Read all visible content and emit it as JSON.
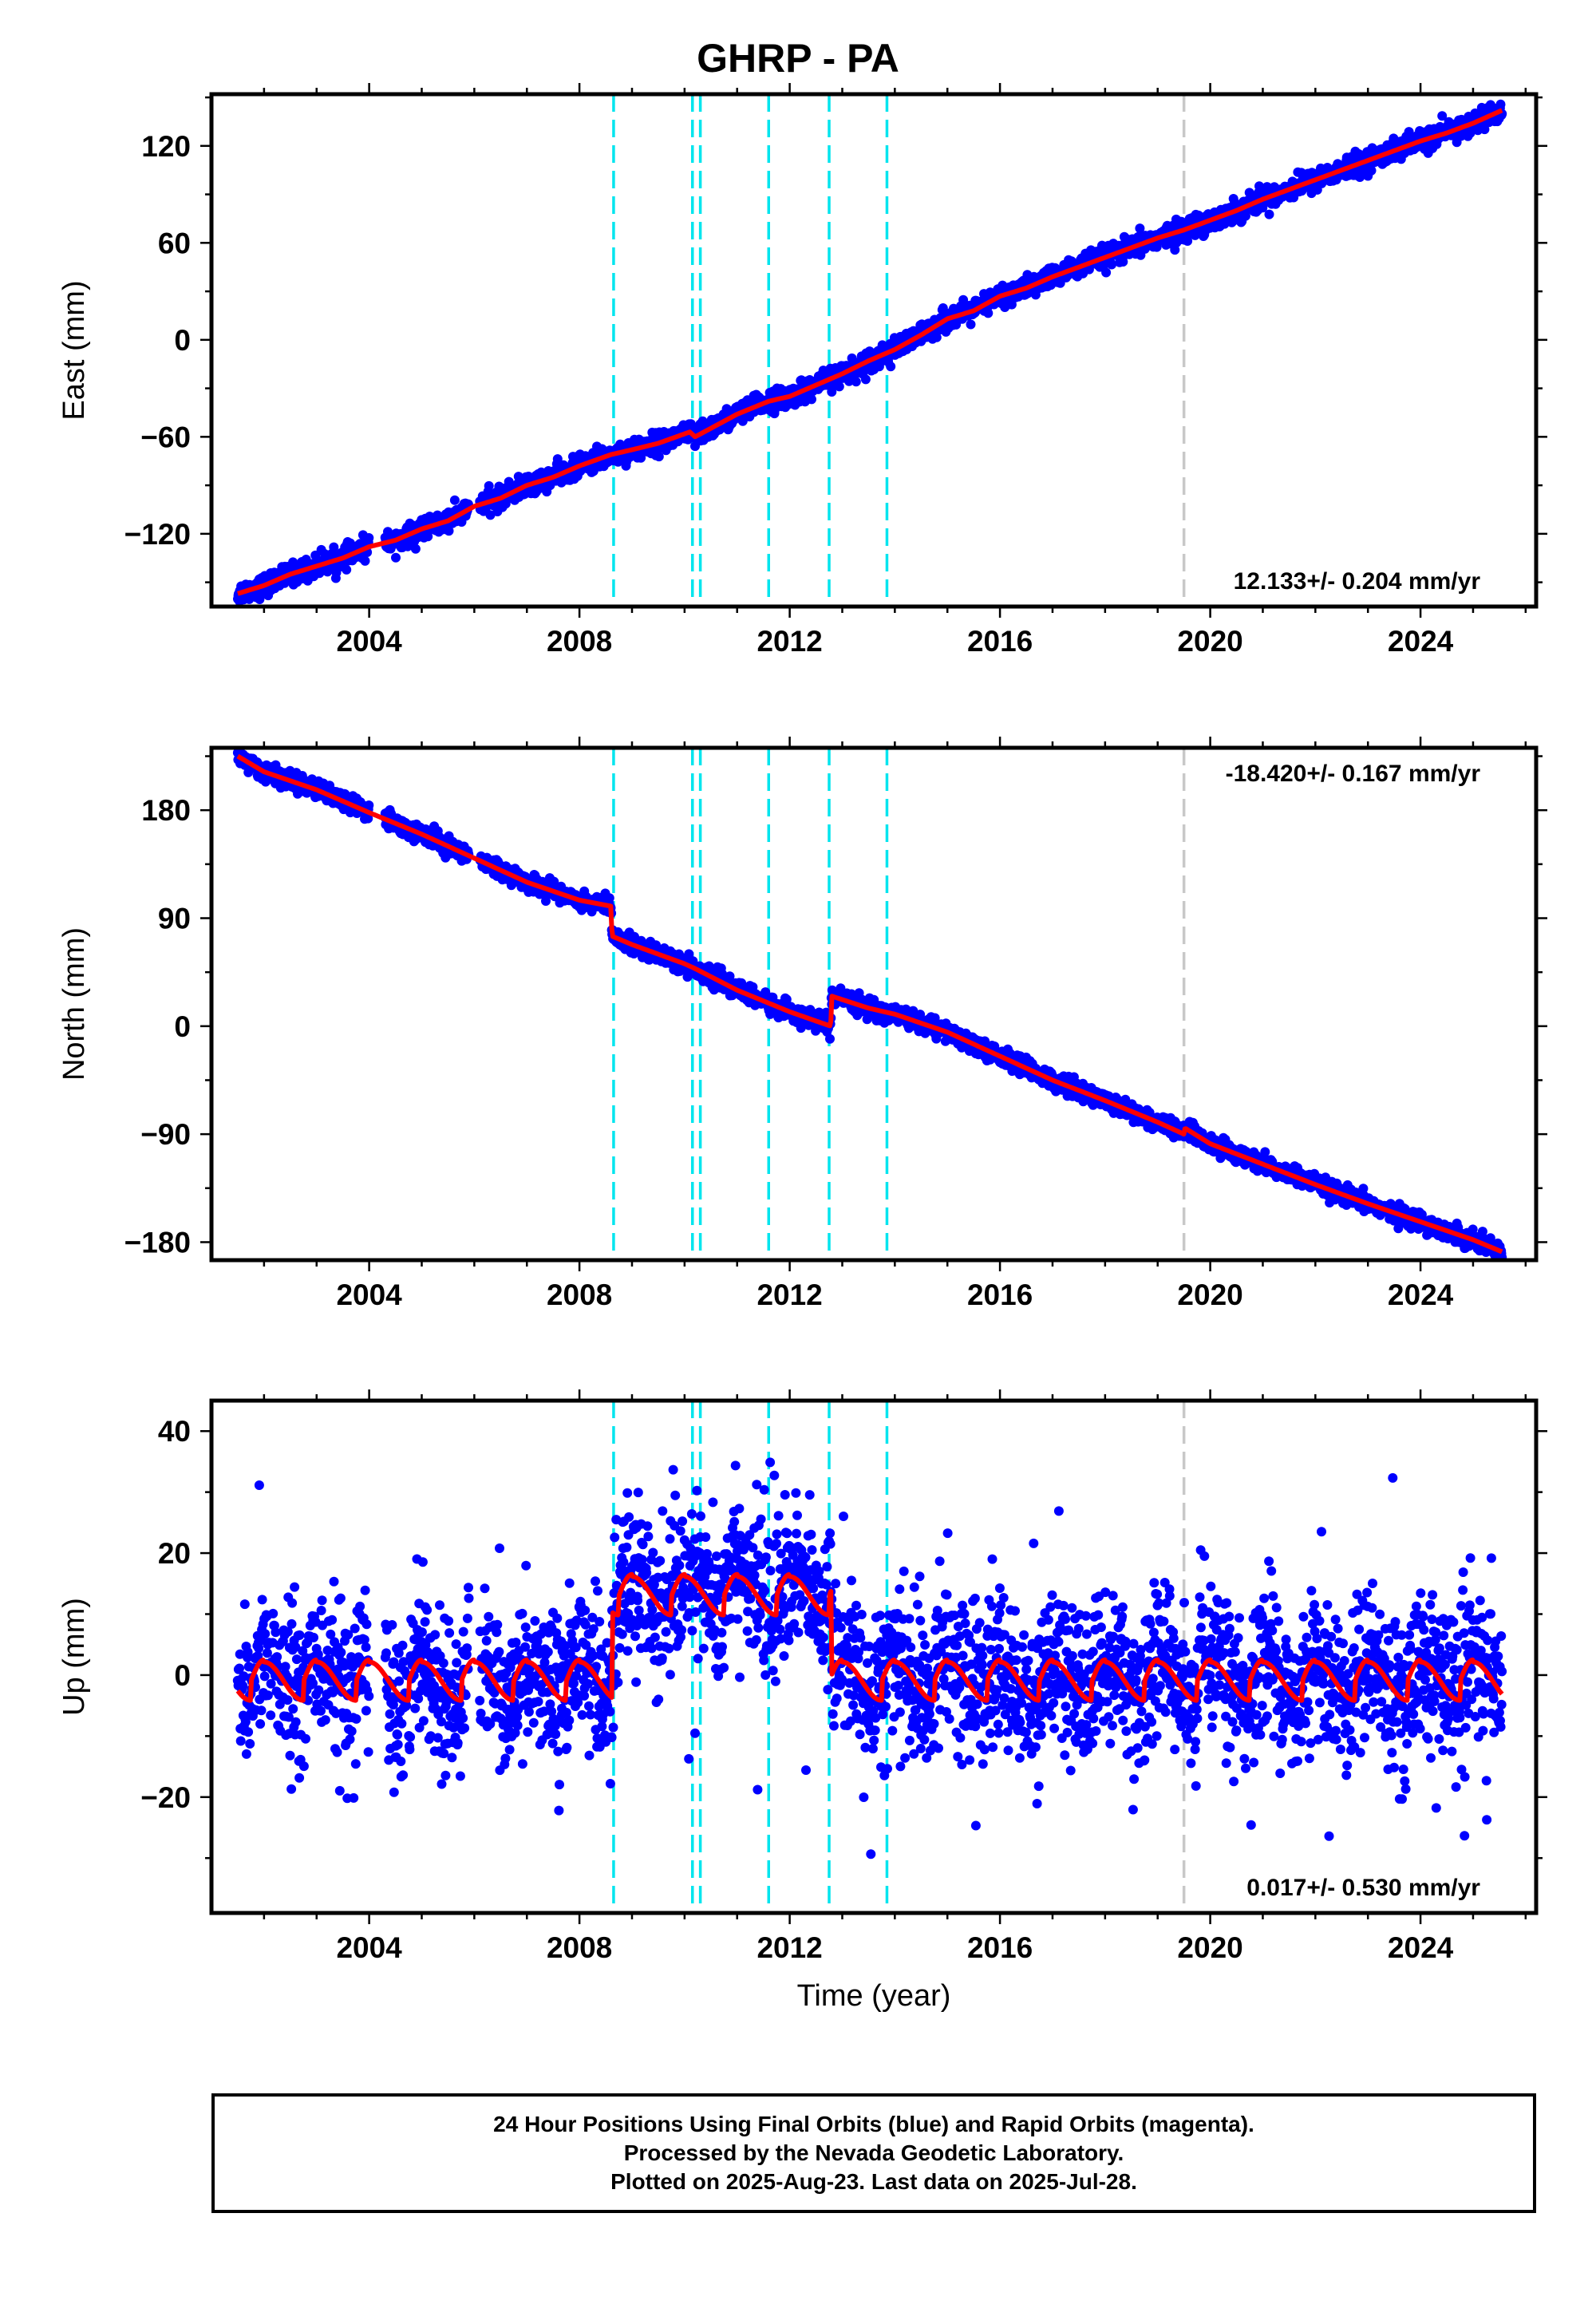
{
  "title": "GHRP - PA",
  "chart_data": [
    {
      "type": "scatter",
      "ylabel": "East (mm)",
      "xlabel": "",
      "xlim": [
        2001.0,
        2026.2
      ],
      "ylim": [
        -165,
        152
      ],
      "x_ticks": [
        2004,
        2008,
        2012,
        2016,
        2020,
        2024
      ],
      "y_ticks": [
        -120,
        -60,
        0,
        60,
        120
      ],
      "rate_label": "12.133+/- 0.204 mm/yr",
      "rate_label_position": "bottom-right",
      "series": [
        {
          "name": "Final Orbits",
          "color": "#0000ff",
          "kind": "points"
        },
        {
          "name": "Model",
          "color": "#ff0000",
          "kind": "line",
          "x": [
            2001.5,
            2002.0,
            2002.5,
            2003.0,
            2003.5,
            2004.0,
            2004.5,
            2005.0,
            2005.5,
            2006.0,
            2006.5,
            2007.0,
            2007.5,
            2008.0,
            2008.6,
            2009.0,
            2009.5,
            2010.1,
            2010.2,
            2011.0,
            2011.6,
            2012.0,
            2012.5,
            2013.0,
            2013.5,
            2014.0,
            2014.5,
            2015.0,
            2015.5,
            2016.0,
            2016.5,
            2017.0,
            2017.5,
            2018.0,
            2018.5,
            2019.0,
            2019.5,
            2020.0,
            2020.5,
            2021.0,
            2021.5,
            2022.0,
            2022.5,
            2023.0,
            2023.5,
            2024.0,
            2024.5,
            2025.0,
            2025.55
          ],
          "y": [
            -157,
            -152,
            -145,
            -140,
            -135,
            -128,
            -124,
            -117,
            -112,
            -103,
            -98,
            -90,
            -85,
            -78,
            -71,
            -68,
            -64,
            -57,
            -60,
            -46,
            -38,
            -35,
            -28,
            -21,
            -13,
            -6,
            3,
            13,
            18,
            27,
            32,
            39,
            45,
            51,
            57,
            63,
            68,
            74,
            80,
            87,
            93,
            99,
            105,
            111,
            117,
            123,
            128,
            134,
            142
          ]
        }
      ]
    },
    {
      "type": "scatter",
      "ylabel": "North (mm)",
      "xlabel": "",
      "xlim": [
        2001.0,
        2026.2
      ],
      "ylim": [
        -195,
        232
      ],
      "x_ticks": [
        2004,
        2008,
        2012,
        2016,
        2020,
        2024
      ],
      "y_ticks": [
        -180,
        -90,
        0,
        90,
        180
      ],
      "rate_label": "-18.420+/- 0.167 mm/yr",
      "rate_label_position": "top-right",
      "series": [
        {
          "name": "Final Orbits",
          "color": "#0000ff",
          "kind": "points"
        },
        {
          "name": "Model",
          "color": "#ff0000",
          "kind": "line",
          "x": [
            2001.5,
            2002.0,
            2003.0,
            2004.0,
            2005.0,
            2006.0,
            2007.0,
            2008.0,
            2008.6,
            2008.62,
            2009.0,
            2010.0,
            2010.2,
            2011.0,
            2012.0,
            2012.78,
            2012.8,
            2013.5,
            2014.0,
            2015.0,
            2016.0,
            2017.0,
            2018.0,
            2019.0,
            2019.5,
            2019.52,
            2020.0,
            2021.0,
            2022.0,
            2023.0,
            2024.0,
            2025.0,
            2025.55
          ],
          "y": [
            225,
            212,
            197,
            178,
            160,
            140,
            120,
            105,
            100,
            75,
            68,
            52,
            48,
            30,
            12,
            0,
            25,
            15,
            10,
            -5,
            -25,
            -45,
            -62,
            -80,
            -90,
            -85,
            -98,
            -115,
            -132,
            -148,
            -163,
            -178,
            -188
          ]
        }
      ]
    },
    {
      "type": "scatter",
      "ylabel": "Up (mm)",
      "xlabel": "Time (year)",
      "xlim": [
        2001.0,
        2026.2
      ],
      "ylim": [
        -39,
        45
      ],
      "x_ticks": [
        2004,
        2008,
        2012,
        2016,
        2020,
        2024
      ],
      "y_ticks": [
        -20,
        0,
        20,
        40
      ],
      "rate_label": "0.017+/- 0.530 mm/yr",
      "rate_label_position": "bottom-right",
      "series": [
        {
          "name": "Final Orbits",
          "color": "#0000ff",
          "kind": "points"
        },
        {
          "name": "Model",
          "color": "#ff0000",
          "kind": "line",
          "x_range": [
            2001.5,
            2025.55
          ],
          "seasonal_amplitude_mm": 3.5,
          "offsets": [
            {
              "from": 2008.62,
              "to": 2012.8,
              "level": 13
            }
          ],
          "baseline": -1
        }
      ]
    }
  ],
  "event_lines": {
    "cyan": [
      2008.65,
      2010.15,
      2010.3,
      2011.6,
      2012.75,
      2013.85
    ],
    "gray": [
      2019.5
    ]
  },
  "colors": {
    "points": "#0000ff",
    "model": "#ff0000",
    "cyan_event": "#00e5ee",
    "gray_event": "#c8c8c8"
  },
  "caption": {
    "line1": "24 Hour Positions Using Final Orbits (blue) and Rapid Orbits (magenta).",
    "line2": "Processed by the Nevada Geodetic Laboratory.",
    "line3": "Plotted on 2025-Aug-23. Last data on 2025-Jul-28."
  }
}
